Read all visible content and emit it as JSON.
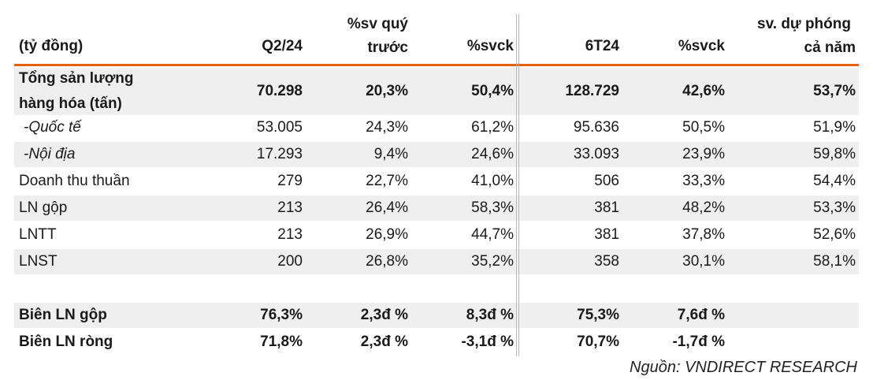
{
  "header": {
    "unit": "(tỷ đồng)",
    "col_q2": "Q2/24",
    "col_qoq_line1": "%sv quý",
    "col_qoq_line2": "trước",
    "col_yoy": "%svck",
    "col_6t": "6T24",
    "col_6t_yoy": "%svck",
    "col_fc_line1": "sv. dự phóng",
    "col_fc_line2": "cả năm"
  },
  "rows": [
    {
      "label_line1": "Tổng sản lượng",
      "label_line2": "hàng hóa (tấn)",
      "q2": "70.298",
      "qoq": "20,3%",
      "yoy": "50,4%",
      "h1": "128.729",
      "h1_yoy": "42,6%",
      "fc": "53,7%"
    },
    {
      "label": "-Quốc tế",
      "q2": "53.005",
      "qoq": "24,3%",
      "yoy": "61,2%",
      "h1": "95.636",
      "h1_yoy": "50,5%",
      "fc": "51,9%"
    },
    {
      "label": "-Nội địa",
      "q2": "17.293",
      "qoq": "9,4%",
      "yoy": "24,6%",
      "h1": "33.093",
      "h1_yoy": "23,9%",
      "fc": "59,8%"
    },
    {
      "label": "Doanh thu thuần",
      "q2": "279",
      "qoq": "22,7%",
      "yoy": "41,0%",
      "h1": "506",
      "h1_yoy": "33,3%",
      "fc": "54,4%"
    },
    {
      "label": "LN gộp",
      "q2": "213",
      "qoq": "26,4%",
      "yoy": "58,3%",
      "h1": "381",
      "h1_yoy": "48,2%",
      "fc": "53,3%"
    },
    {
      "label": "LNTT",
      "q2": "213",
      "qoq": "26,9%",
      "yoy": "44,7%",
      "h1": "381",
      "h1_yoy": "37,8%",
      "fc": "52,6%"
    },
    {
      "label": "LNST",
      "q2": "200",
      "qoq": "26,8%",
      "yoy": "35,2%",
      "h1": "358",
      "h1_yoy": "30,1%",
      "fc": "58,1%"
    },
    {
      "label": "Biên LN gộp",
      "q2": "76,3%",
      "qoq": "2,3đ %",
      "yoy": "8,3đ %",
      "h1": "75,3%",
      "h1_yoy": "7,6đ %",
      "fc": ""
    },
    {
      "label": "Biên LN ròng",
      "q2": "71,8%",
      "qoq": "2,3đ %",
      "yoy": "-3,1đ %",
      "h1": "70,7%",
      "h1_yoy": "-1,7đ %",
      "fc": ""
    }
  ],
  "source": "Nguồn: VNDIRECT RESEARCH",
  "colors": {
    "accent": "#e4600f",
    "shade": "#efefef",
    "separator": "#b8b8b8"
  }
}
